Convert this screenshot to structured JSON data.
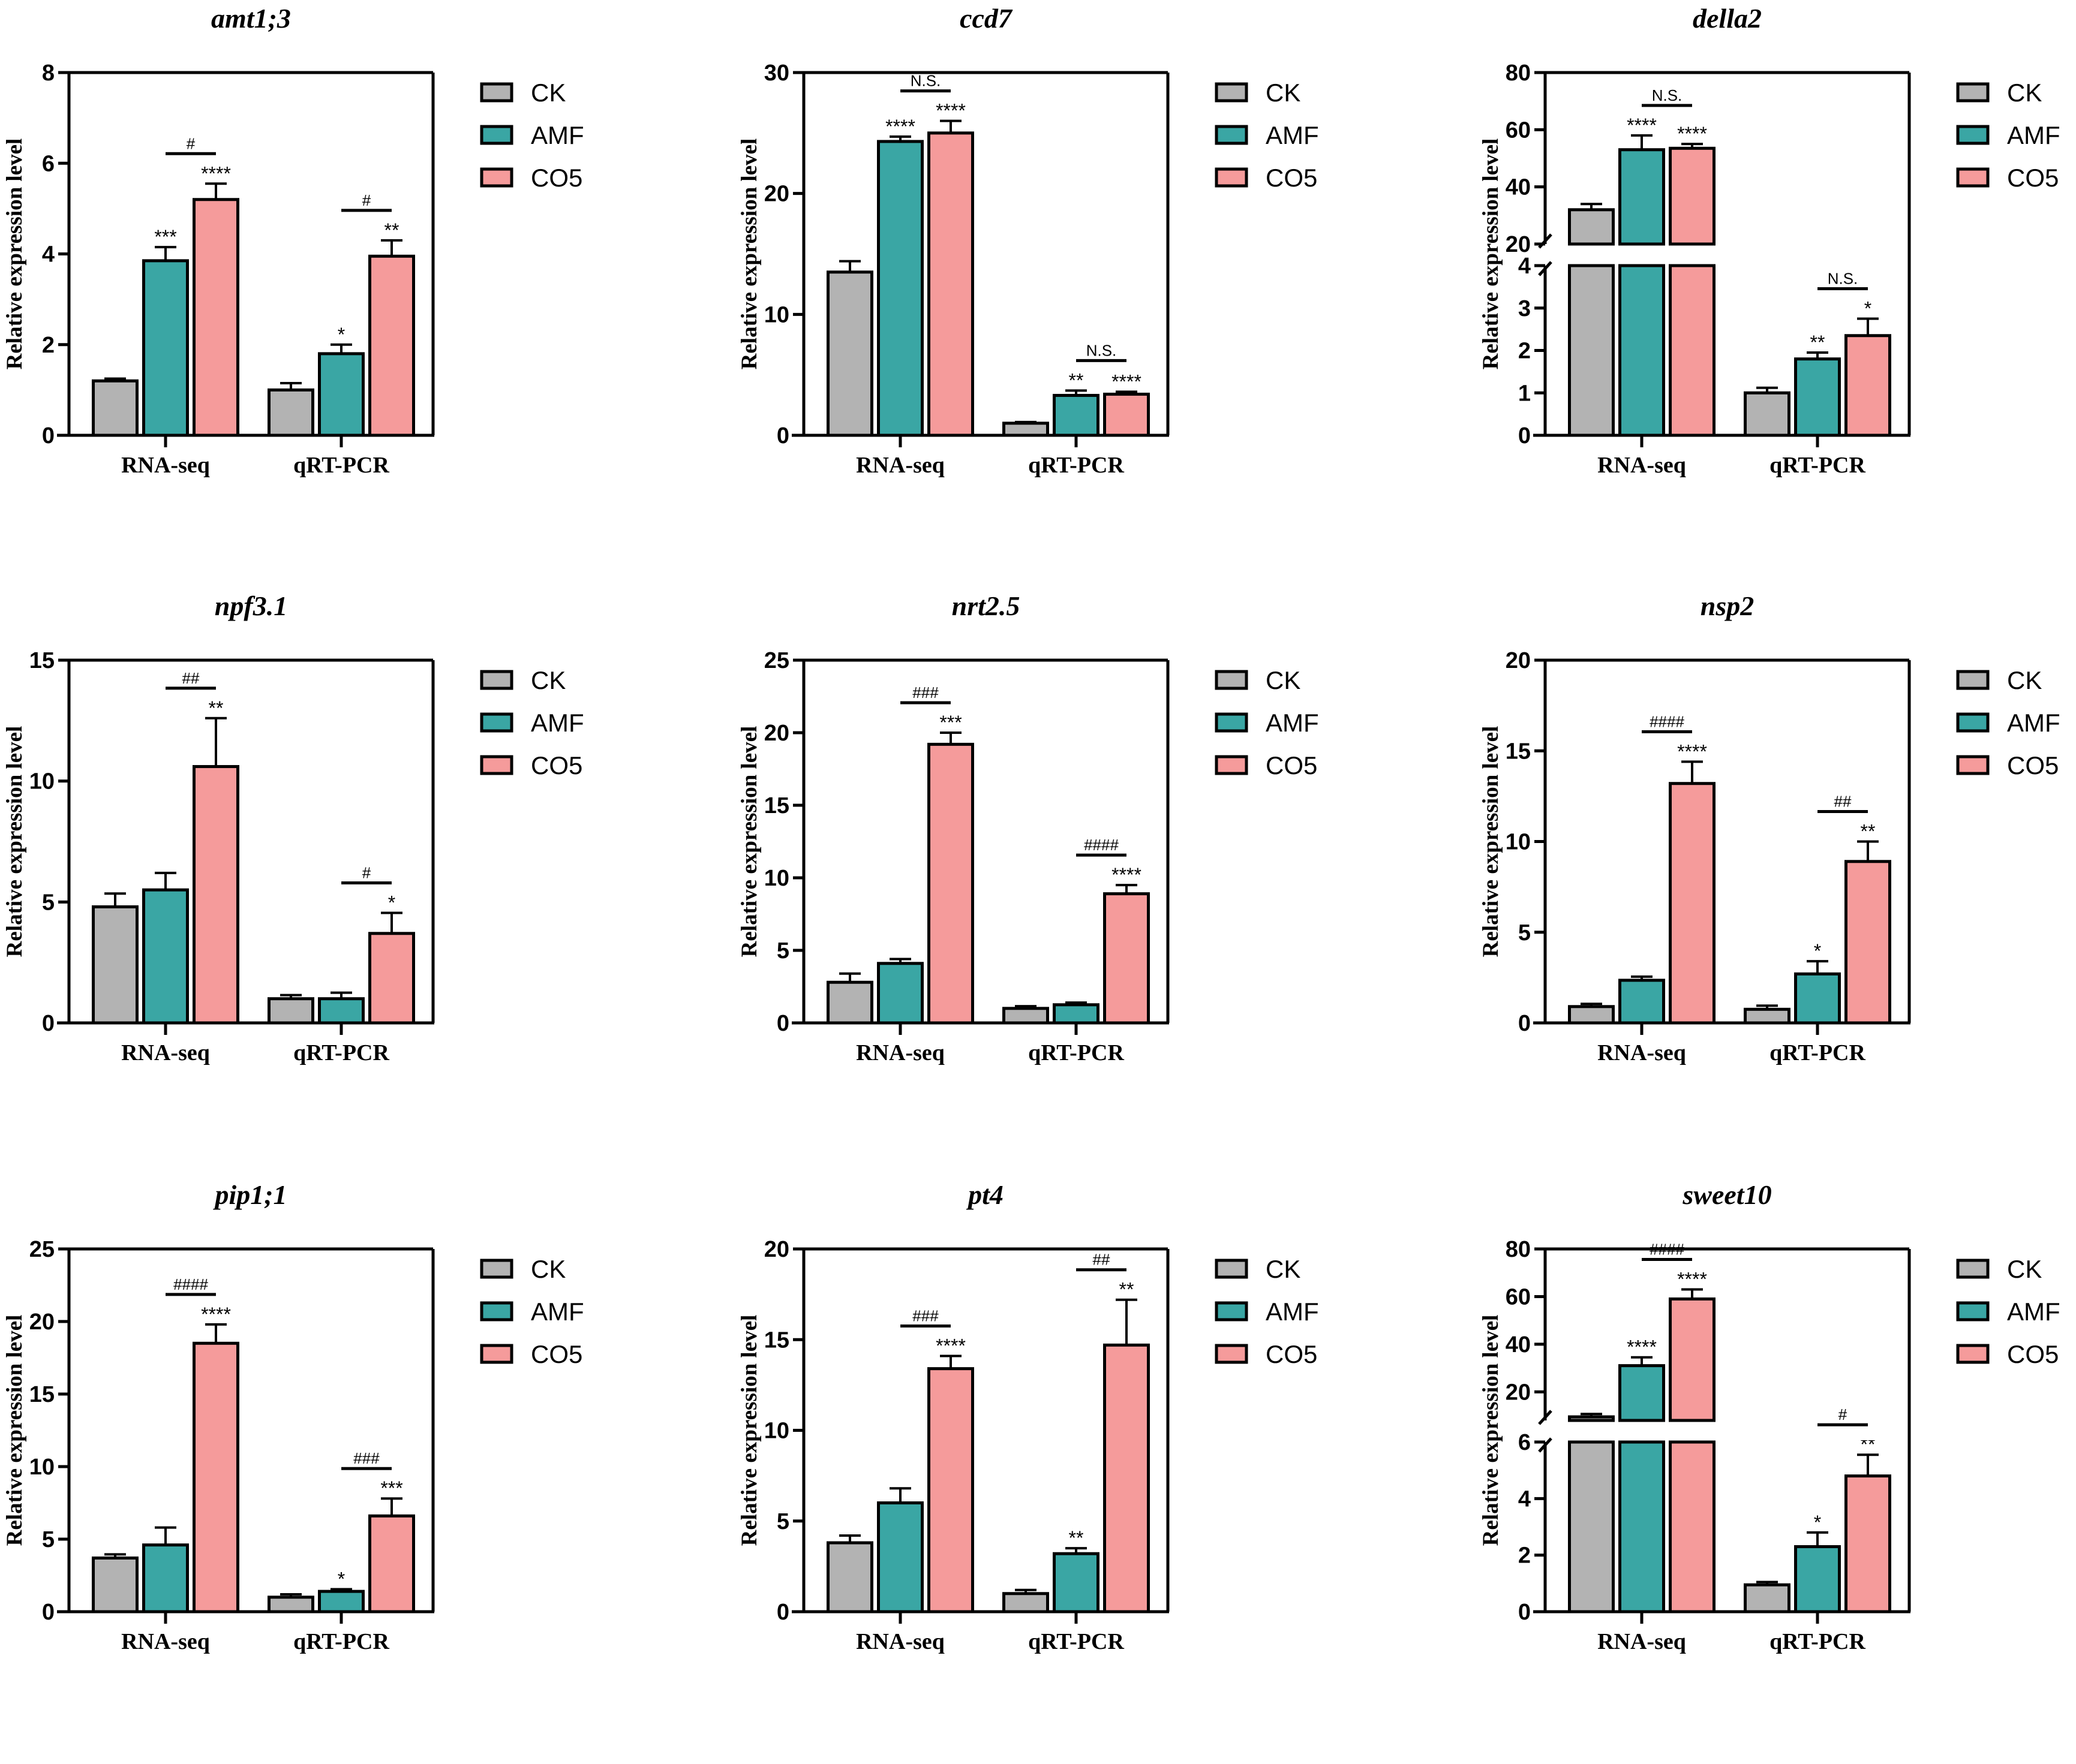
{
  "legend": [
    "CK",
    "AMF",
    "CO5"
  ],
  "colors": {
    "CK": "#b3b3b3",
    "AMF": "#3aa6a4",
    "CO5": "#f59b9b",
    "stroke": "#000000"
  },
  "chart_data": [
    {
      "type": "bar",
      "title": "amt1;3",
      "ylabel": "Relative expression level",
      "categories": [
        "RNA-seq",
        "qRT-PCR"
      ],
      "ylim": [
        0,
        8
      ],
      "yticks": [
        0,
        2,
        4,
        6,
        8
      ],
      "series": [
        {
          "name": "CK",
          "values": [
            1.2,
            1.0
          ],
          "errors": [
            0.05,
            0.15
          ],
          "stars": [
            "",
            ""
          ]
        },
        {
          "name": "AMF",
          "values": [
            3.85,
            1.8
          ],
          "errors": [
            0.3,
            0.2
          ],
          "stars": [
            "***",
            "*"
          ]
        },
        {
          "name": "CO5",
          "values": [
            5.2,
            3.95
          ],
          "errors": [
            0.35,
            0.35
          ],
          "stars": [
            "****",
            "**"
          ]
        }
      ],
      "comparisons": [
        "#",
        "#"
      ]
    },
    {
      "type": "bar",
      "title": "ccd7",
      "ylabel": "Relative expression level",
      "categories": [
        "RNA-seq",
        "qRT-PCR"
      ],
      "ylim": [
        0,
        30
      ],
      "yticks": [
        0,
        10,
        20,
        30
      ],
      "series": [
        {
          "name": "CK",
          "values": [
            13.5,
            1.0
          ],
          "errors": [
            0.9,
            0.1
          ],
          "stars": [
            "",
            ""
          ]
        },
        {
          "name": "AMF",
          "values": [
            24.3,
            3.3
          ],
          "errors": [
            0.4,
            0.4
          ],
          "stars": [
            "****",
            "**"
          ]
        },
        {
          "name": "CO5",
          "values": [
            25.0,
            3.4
          ],
          "errors": [
            1.0,
            0.2
          ],
          "stars": [
            "****",
            "****"
          ]
        }
      ],
      "comparisons": [
        "N.S.",
        "N.S."
      ]
    },
    {
      "type": "bar",
      "title": "della2",
      "ylabel": "Relative expression level",
      "categories": [
        "RNA-seq",
        "qRT-PCR"
      ],
      "broken_axis": {
        "lower": [
          0,
          4
        ],
        "lower_ticks": [
          0,
          1,
          2,
          3,
          4
        ],
        "upper": [
          20,
          80
        ],
        "upper_ticks": [
          20,
          40,
          60,
          80
        ]
      },
      "series": [
        {
          "name": "CK",
          "values": [
            32,
            1.0
          ],
          "errors": [
            2,
            0.12
          ],
          "stars": [
            "",
            ""
          ]
        },
        {
          "name": "AMF",
          "values": [
            53,
            1.8
          ],
          "errors": [
            5,
            0.15
          ],
          "stars": [
            "****",
            "**"
          ]
        },
        {
          "name": "CO5",
          "values": [
            53.5,
            2.35
          ],
          "errors": [
            1.5,
            0.4
          ],
          "stars": [
            "****",
            "*"
          ]
        }
      ],
      "comparisons": [
        "N.S.",
        "N.S."
      ]
    },
    {
      "type": "bar",
      "title": "npf3.1",
      "ylabel": "Relative expression level",
      "categories": [
        "RNA-seq",
        "qRT-PCR"
      ],
      "ylim": [
        0,
        15
      ],
      "yticks": [
        0,
        5,
        10,
        15
      ],
      "series": [
        {
          "name": "CK",
          "values": [
            4.8,
            1.0
          ],
          "errors": [
            0.55,
            0.15
          ],
          "stars": [
            "",
            ""
          ]
        },
        {
          "name": "AMF",
          "values": [
            5.5,
            1.0
          ],
          "errors": [
            0.7,
            0.25
          ],
          "stars": [
            "",
            ""
          ]
        },
        {
          "name": "CO5",
          "values": [
            10.6,
            3.7
          ],
          "errors": [
            2.0,
            0.85
          ],
          "stars": [
            "**",
            "*"
          ]
        }
      ],
      "comparisons": [
        "##",
        "#"
      ]
    },
    {
      "type": "bar",
      "title": "nrt2.5",
      "ylabel": "Relative expression level",
      "categories": [
        "RNA-seq",
        "qRT-PCR"
      ],
      "ylim": [
        0,
        25
      ],
      "yticks": [
        0,
        5,
        10,
        15,
        20,
        25
      ],
      "series": [
        {
          "name": "CK",
          "values": [
            2.8,
            1.0
          ],
          "errors": [
            0.6,
            0.15
          ],
          "stars": [
            "",
            ""
          ]
        },
        {
          "name": "AMF",
          "values": [
            4.1,
            1.25
          ],
          "errors": [
            0.3,
            0.15
          ],
          "stars": [
            "",
            ""
          ]
        },
        {
          "name": "CO5",
          "values": [
            19.2,
            8.9
          ],
          "errors": [
            0.8,
            0.6
          ],
          "stars": [
            "***",
            "****"
          ]
        }
      ],
      "comparisons": [
        "###",
        "####"
      ]
    },
    {
      "type": "bar",
      "title": "nsp2",
      "ylabel": "Relative expression level",
      "categories": [
        "RNA-seq",
        "qRT-PCR"
      ],
      "ylim": [
        0,
        20
      ],
      "yticks": [
        0,
        5,
        10,
        15,
        20
      ],
      "series": [
        {
          "name": "CK",
          "values": [
            0.9,
            0.75
          ],
          "errors": [
            0.15,
            0.2
          ],
          "stars": [
            "",
            ""
          ]
        },
        {
          "name": "AMF",
          "values": [
            2.35,
            2.7
          ],
          "errors": [
            0.2,
            0.7
          ],
          "stars": [
            "",
            "*"
          ]
        },
        {
          "name": "CO5",
          "values": [
            13.2,
            8.9
          ],
          "errors": [
            1.2,
            1.1
          ],
          "stars": [
            "****",
            "**"
          ]
        }
      ],
      "comparisons": [
        "####",
        "##"
      ]
    },
    {
      "type": "bar",
      "title": "pip1;1",
      "ylabel": "Relative expression level",
      "categories": [
        "RNA-seq",
        "qRT-PCR"
      ],
      "ylim": [
        0,
        25
      ],
      "yticks": [
        0,
        5,
        10,
        15,
        20,
        25
      ],
      "series": [
        {
          "name": "CK",
          "values": [
            3.7,
            1.0
          ],
          "errors": [
            0.25,
            0.2
          ],
          "stars": [
            "",
            ""
          ]
        },
        {
          "name": "AMF",
          "values": [
            4.6,
            1.4
          ],
          "errors": [
            1.2,
            0.15
          ],
          "stars": [
            "",
            "*"
          ]
        },
        {
          "name": "CO5",
          "values": [
            18.5,
            6.6
          ],
          "errors": [
            1.3,
            1.2
          ],
          "stars": [
            "****",
            "***"
          ]
        }
      ],
      "comparisons": [
        "####",
        "###"
      ]
    },
    {
      "type": "bar",
      "title": "pt4",
      "ylabel": "Relative expression level",
      "categories": [
        "RNA-seq",
        "qRT-PCR"
      ],
      "ylim": [
        0,
        20
      ],
      "yticks": [
        0,
        5,
        10,
        15,
        20
      ],
      "series": [
        {
          "name": "CK",
          "values": [
            3.8,
            1.0
          ],
          "errors": [
            0.4,
            0.2
          ],
          "stars": [
            "",
            ""
          ]
        },
        {
          "name": "AMF",
          "values": [
            6.0,
            3.2
          ],
          "errors": [
            0.8,
            0.3
          ],
          "stars": [
            "",
            "**"
          ]
        },
        {
          "name": "CO5",
          "values": [
            13.4,
            14.7
          ],
          "errors": [
            0.7,
            2.5
          ],
          "stars": [
            "****",
            "**"
          ]
        }
      ],
      "comparisons": [
        "###",
        "##"
      ]
    },
    {
      "type": "bar",
      "title": "sweet10",
      "ylabel": "Relative expression level",
      "categories": [
        "RNA-seq",
        "qRT-PCR"
      ],
      "broken_axis": {
        "lower": [
          0,
          6
        ],
        "lower_ticks": [
          0,
          2,
          4,
          6
        ],
        "upper": [
          8,
          80
        ],
        "upper_ticks": [
          20,
          40,
          60,
          80
        ]
      },
      "series": [
        {
          "name": "CK",
          "values": [
            9.5,
            0.95
          ],
          "errors": [
            1.2,
            0.1
          ],
          "stars": [
            "",
            ""
          ]
        },
        {
          "name": "AMF",
          "values": [
            31,
            2.3
          ],
          "errors": [
            3.5,
            0.5
          ],
          "stars": [
            "****",
            "*"
          ]
        },
        {
          "name": "CO5",
          "values": [
            59,
            4.8
          ],
          "errors": [
            4,
            0.75
          ],
          "stars": [
            "****",
            "**"
          ]
        }
      ],
      "comparisons": [
        "####",
        "#"
      ]
    }
  ]
}
